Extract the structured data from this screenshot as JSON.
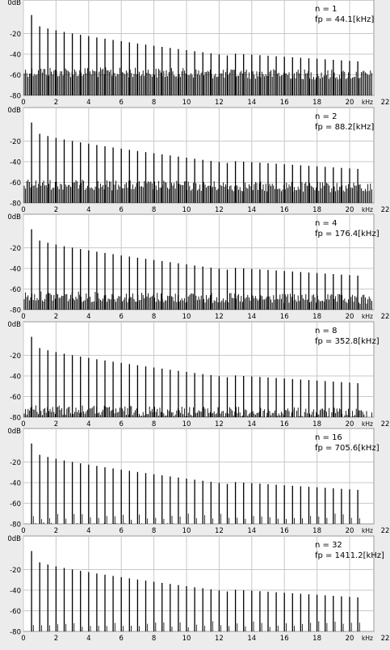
{
  "chart_data": [
    {
      "type": "line",
      "annotation": [
        "n = 1",
        "fp = 44.1[kHz]"
      ],
      "noise": [
        52,
        80
      ]
    },
    {
      "type": "line",
      "annotation": [
        "n = 2",
        "fp = 88.2[kHz]"
      ],
      "noise": [
        57,
        80
      ]
    },
    {
      "type": "line",
      "annotation": [
        "n = 4",
        "fp = 176.4[kHz]"
      ],
      "noise": [
        62,
        80
      ]
    },
    {
      "type": "line",
      "annotation": [
        "n = 8",
        "fp = 352.8[kHz]"
      ],
      "noise": [
        68,
        80
      ]
    },
    {
      "type": "line",
      "annotation": [
        "n = 16",
        "fp = 705.6[kHz]"
      ],
      "noise": [
        78,
        80
      ]
    },
    {
      "type": "line",
      "annotation": [
        "n = 32",
        "fp = 1411.2[kHz]"
      ],
      "noise": [
        80,
        80
      ]
    }
  ],
  "axes": {
    "y_ticks": [
      "0dB",
      "-20",
      "-40",
      "-60",
      "-80"
    ],
    "x_ticks": [
      "0",
      "2",
      "4",
      "6",
      "8",
      "10",
      "12",
      "14",
      "16",
      "18",
      "20",
      "22"
    ],
    "x_unit": "kHz",
    "xlim": [
      0,
      22
    ],
    "ylim": [
      -80,
      0
    ],
    "grid": true
  },
  "harmonics": {
    "fundamental_khz": 0.5,
    "count": 41,
    "first_db": -2,
    "decay_db": [
      -10,
      -20,
      -30,
      -42
    ]
  },
  "colors": {
    "plot_bg": "#ffffff",
    "grid": "#c8c8c8",
    "trace": "#000000",
    "page_bg": "#ececec"
  }
}
